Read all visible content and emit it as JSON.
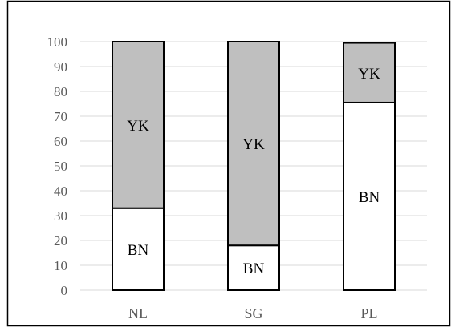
{
  "chart_data": {
    "type": "bar",
    "stacked": true,
    "categories": [
      "NL",
      "SG",
      "PL"
    ],
    "series": [
      {
        "values": [
          33,
          18,
          75.5
        ],
        "label": "BN",
        "color": "#ffffff"
      },
      {
        "values": [
          67,
          82,
          24
        ],
        "label": "YK",
        "color": "#bfbfbf"
      }
    ],
    "ylim": [
      0,
      100
    ],
    "yticks": [
      0,
      10,
      20,
      30,
      40,
      50,
      60,
      70,
      80,
      90,
      100
    ],
    "grid": true,
    "colors": {
      "grid": "#d9d9d9",
      "bar_stroke": "#000000",
      "frame": "#000000",
      "axis_text": "#595959"
    }
  }
}
